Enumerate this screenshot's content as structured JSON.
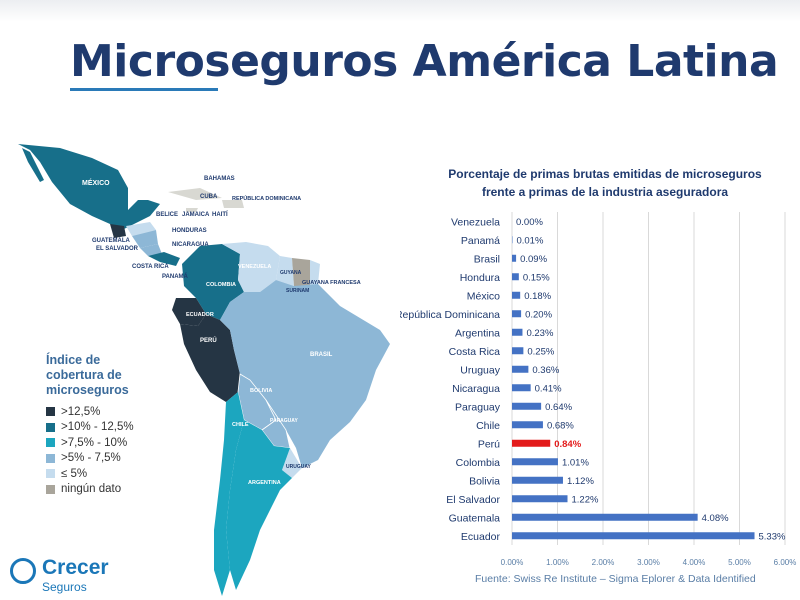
{
  "slide": {
    "title": "Microseguros América Latina",
    "source": "Fuente: Swiss Re Institute – Sigma Eplorer & Data Identified"
  },
  "legend": {
    "title": "Índice de cobertura de microseguros",
    "items": [
      {
        "label": ">12,5%",
        "color": "#253544"
      },
      {
        "label": ">10% - 12,5%",
        "color": "#176f8a"
      },
      {
        "label": ">7,5% - 10%",
        "color": "#1ca6bf"
      },
      {
        "label": ">5% - 7,5%",
        "color": "#8db7d6"
      },
      {
        "label": "≤ 5%",
        "color": "#c5dcee"
      },
      {
        "label": "ningún dato",
        "color": "#a9a59b"
      }
    ]
  },
  "map_labels": {
    "mexico": "MÉXICO",
    "bahamas": "BAHAMAS",
    "cuba": "CUBA",
    "haiti": "HAITÍ",
    "rep_dom": "REPÚBLICA DOMINICANA",
    "belice": "BELICE",
    "jamaica": "JAMAICA",
    "honduras": "HONDURAS",
    "guatemala": "GUATEMALA",
    "el_salvador": "EL SALVADOR",
    "nicaragua": "NICARAGUA",
    "costa_rica": "COSTA RICA",
    "panama": "PANAMÁ",
    "venezuela": "VENEZUELA",
    "colombia": "COLOMBIA",
    "guyana": "GUYANA",
    "surinam": "SURINAM",
    "guayana_fr": "GUAYANA FRANCESA",
    "ecuador": "ECUADOR",
    "peru": "PERÚ",
    "brasil": "BRASIL",
    "bolivia": "BOLIVIA",
    "paraguay": "PARAGUAY",
    "chile": "CHILE",
    "argentina": "ARGENTINA",
    "uruguay": "URUGUAY"
  },
  "logo": {
    "name": "Crecer",
    "sub": "Seguros"
  },
  "chart_data": {
    "type": "bar",
    "orientation": "horizontal",
    "title": "Porcentaje de primas brutas emitidas de microseguros frente a primas de la industria aseguradora",
    "categories": [
      "Venezuela",
      "Panamá",
      "Brasil",
      "Hondura",
      "México",
      "República Dominicana",
      "Argentina",
      "Costa Rica",
      "Uruguay",
      "Nicaragua",
      "Paraguay",
      "Chile",
      "Perú",
      "Colombia",
      "Bolivia",
      "El Salvador",
      "Guatemala",
      "Ecuador"
    ],
    "values": [
      0.0,
      0.01,
      0.09,
      0.15,
      0.18,
      0.2,
      0.23,
      0.25,
      0.36,
      0.41,
      0.64,
      0.68,
      0.84,
      1.01,
      1.12,
      1.22,
      4.08,
      5.33
    ],
    "data_labels": [
      "0.00%",
      "0.01%",
      "0.09%",
      "0.15%",
      "0.18%",
      "0.20%",
      "0.23%",
      "0.25%",
      "0.36%",
      "0.41%",
      "0.64%",
      "0.68%",
      "0.84%",
      "1.01%",
      "1.12%",
      "1.22%",
      "4.08%",
      "5.33%"
    ],
    "xlim": [
      0,
      6
    ],
    "xticks": [
      "0.00%",
      "1.00%",
      "2.00%",
      "3.00%",
      "4.00%",
      "5.00%",
      "6.00%"
    ],
    "highlight": "Perú",
    "bar_color": "#4472c4",
    "highlight_color": "#e31b1b",
    "grid": true
  }
}
